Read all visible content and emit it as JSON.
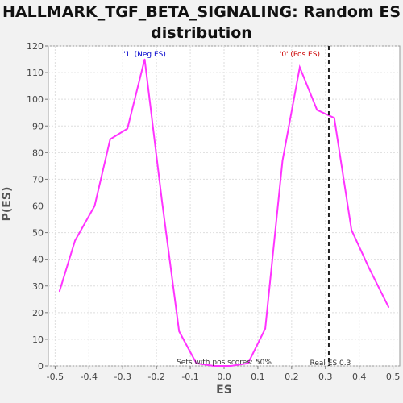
{
  "chart_data": {
    "type": "line",
    "title_line1": "HALLMARK_TGF_BETA_SIGNALING: Random ES",
    "title_line2": "distribution",
    "xlabel": "ES",
    "ylabel": "P(ES)",
    "xlim": [
      -0.52,
      0.52
    ],
    "ylim": [
      0,
      120
    ],
    "grid": true,
    "x_ticks": [
      -0.5,
      -0.4,
      -0.3,
      -0.2,
      -0.1,
      0.0,
      0.1,
      0.2,
      0.3,
      0.4,
      0.5
    ],
    "x_tick_labels": [
      "-0.5",
      "-0.4",
      "-0.3",
      "-0.2",
      "-0.1",
      "0.0",
      "0.1",
      "0.2",
      "0.3",
      "0.4",
      "0.5"
    ],
    "y_ticks": [
      0,
      10,
      20,
      30,
      40,
      50,
      60,
      70,
      80,
      90,
      100,
      110,
      120
    ],
    "y_tick_labels": [
      "0",
      "10",
      "20",
      "30",
      "40",
      "50",
      "60",
      "70",
      "80",
      "90",
      "100",
      "110",
      "120"
    ],
    "series": [
      {
        "color": "#ff33ff",
        "x": [
          -0.487,
          -0.441,
          -0.383,
          -0.337,
          -0.286,
          -0.235,
          -0.184,
          -0.133,
          -0.082,
          -0.031,
          0.02,
          0.071,
          0.122,
          0.173,
          0.224,
          0.275,
          0.326,
          0.377,
          0.428,
          0.487
        ],
        "y": [
          28,
          47,
          60,
          85,
          89,
          115,
          62,
          13,
          1,
          0,
          0,
          1,
          14,
          77,
          112,
          96,
          93,
          51,
          37,
          22
        ]
      }
    ],
    "real_es": {
      "x": 0.31,
      "label": "Real ES 0.3"
    },
    "annotations": {
      "neg": {
        "text": "'1' (Neg ES)",
        "color": "#0000cc",
        "x": -0.235
      },
      "pos": {
        "text": "'0' (Pos ES)",
        "color": "#cc0000",
        "x": 0.224
      },
      "pos_scores": {
        "text": "Sets with pos scores: 50%"
      }
    }
  }
}
